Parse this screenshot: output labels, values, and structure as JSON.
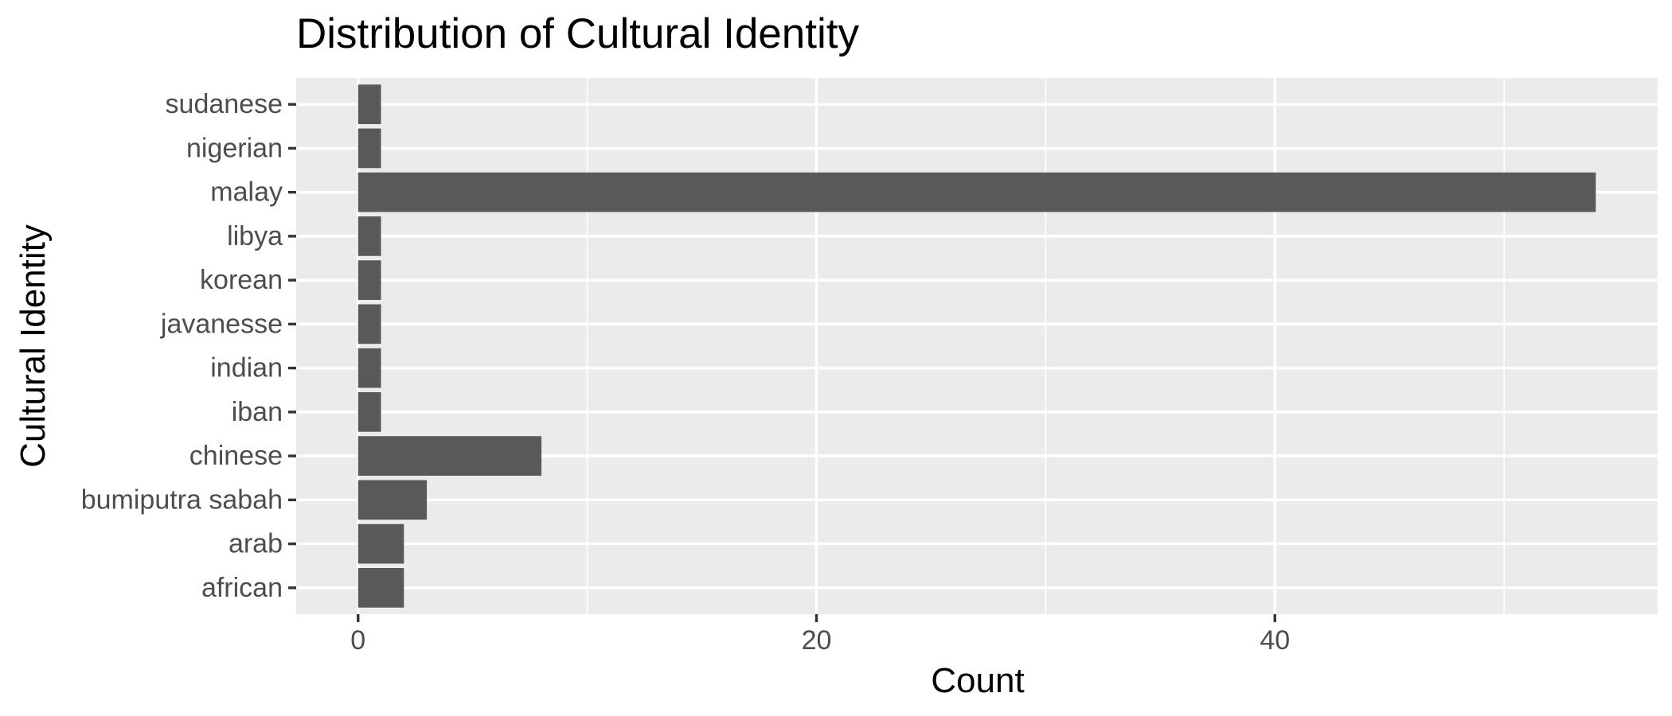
{
  "chart_data": {
    "type": "bar",
    "orientation": "horizontal",
    "title": "Distribution of Cultural Identity",
    "xlabel": "Count",
    "ylabel": "Cultural Identity",
    "categories": [
      "african",
      "arab",
      "bumiputra sabah",
      "chinese",
      "iban",
      "indian",
      "javanesse",
      "korean",
      "libya",
      "malay",
      "nigerian",
      "sudanese"
    ],
    "values": [
      2,
      2,
      3,
      8,
      1,
      1,
      1,
      1,
      1,
      54,
      1,
      1
    ],
    "xlim": [
      -2.7,
      56.7
    ],
    "xticks": [
      0,
      20,
      40
    ],
    "grid": true,
    "legend": "none",
    "colors": {
      "bar": "#595959",
      "panel": "#ebebeb",
      "grid": "#ffffff",
      "tick_text": "#4d4d4d",
      "tick_mark": "#333333"
    }
  }
}
